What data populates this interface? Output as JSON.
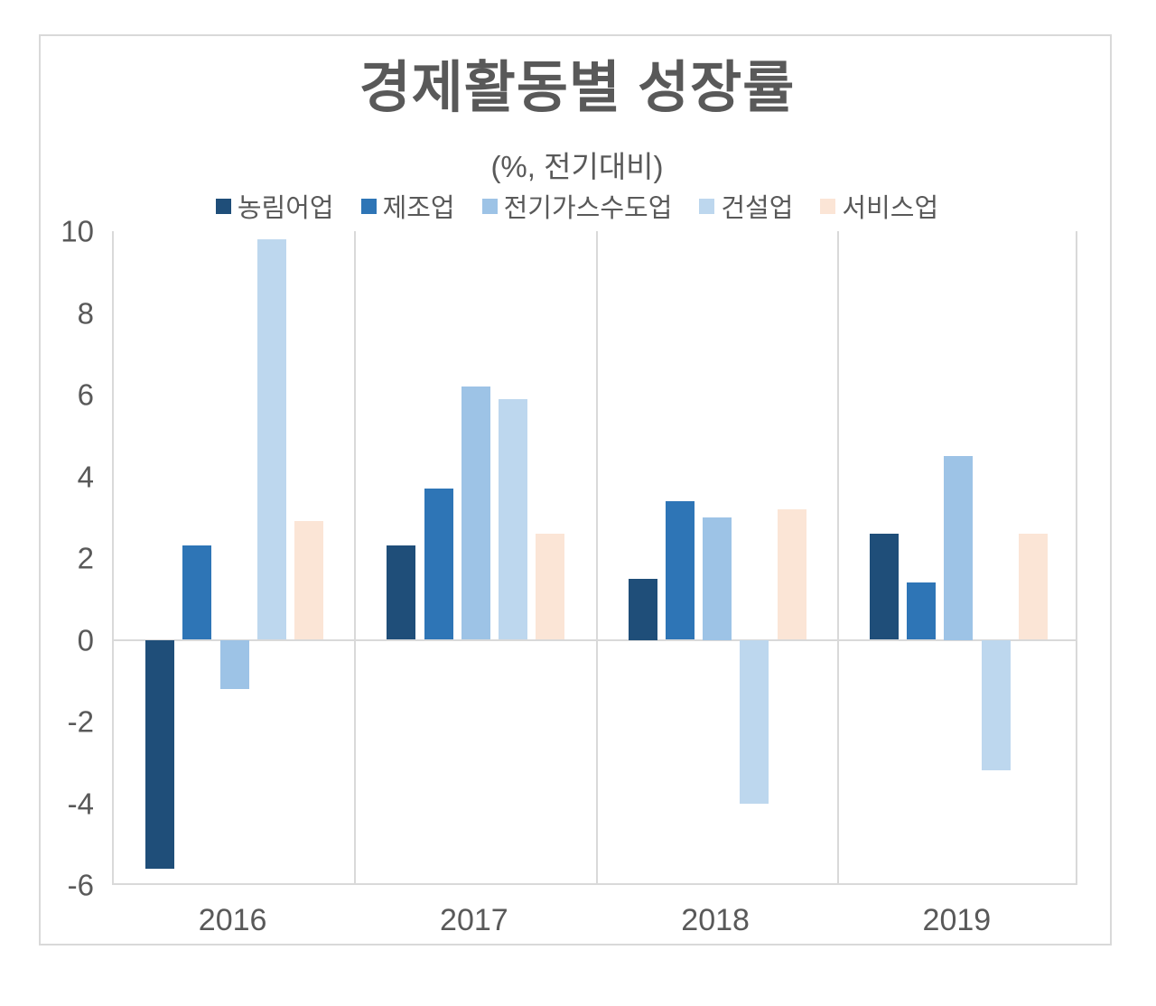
{
  "title": "경제활동별 성장률",
  "subtitle": "(%, 전기대비)",
  "chart_data": {
    "type": "bar",
    "title": "경제활동별 성장률",
    "subtitle": "(%, 전기대비)",
    "categories": [
      "2016",
      "2017",
      "2018",
      "2019"
    ],
    "series": [
      {
        "name": "농림어업",
        "color": "#1F4E79",
        "values": [
          -5.6,
          2.3,
          1.5,
          2.6
        ]
      },
      {
        "name": "제조업",
        "color": "#2E75B6",
        "values": [
          2.3,
          3.7,
          3.4,
          1.4
        ]
      },
      {
        "name": "전기가스수도업",
        "color": "#9DC3E6",
        "values": [
          -1.2,
          6.2,
          3.0,
          4.5
        ]
      },
      {
        "name": "건설업",
        "color": "#BDD7EE",
        "values": [
          9.8,
          5.9,
          -4.0,
          -3.2
        ]
      },
      {
        "name": "서비스업",
        "color": "#FBE5D6",
        "values": [
          2.9,
          2.6,
          3.2,
          2.6
        ]
      }
    ],
    "ylabel": "",
    "xlabel": "",
    "ylim": [
      -6,
      10
    ],
    "y_ticks": [
      10,
      8,
      6,
      4,
      2,
      0,
      -2,
      -4,
      -6
    ],
    "legend_position": "top",
    "grid": "zero-line and vertical category separators only",
    "colors": {
      "text": "#595959",
      "gridline": "#d9d9d9",
      "background": "#ffffff"
    }
  }
}
